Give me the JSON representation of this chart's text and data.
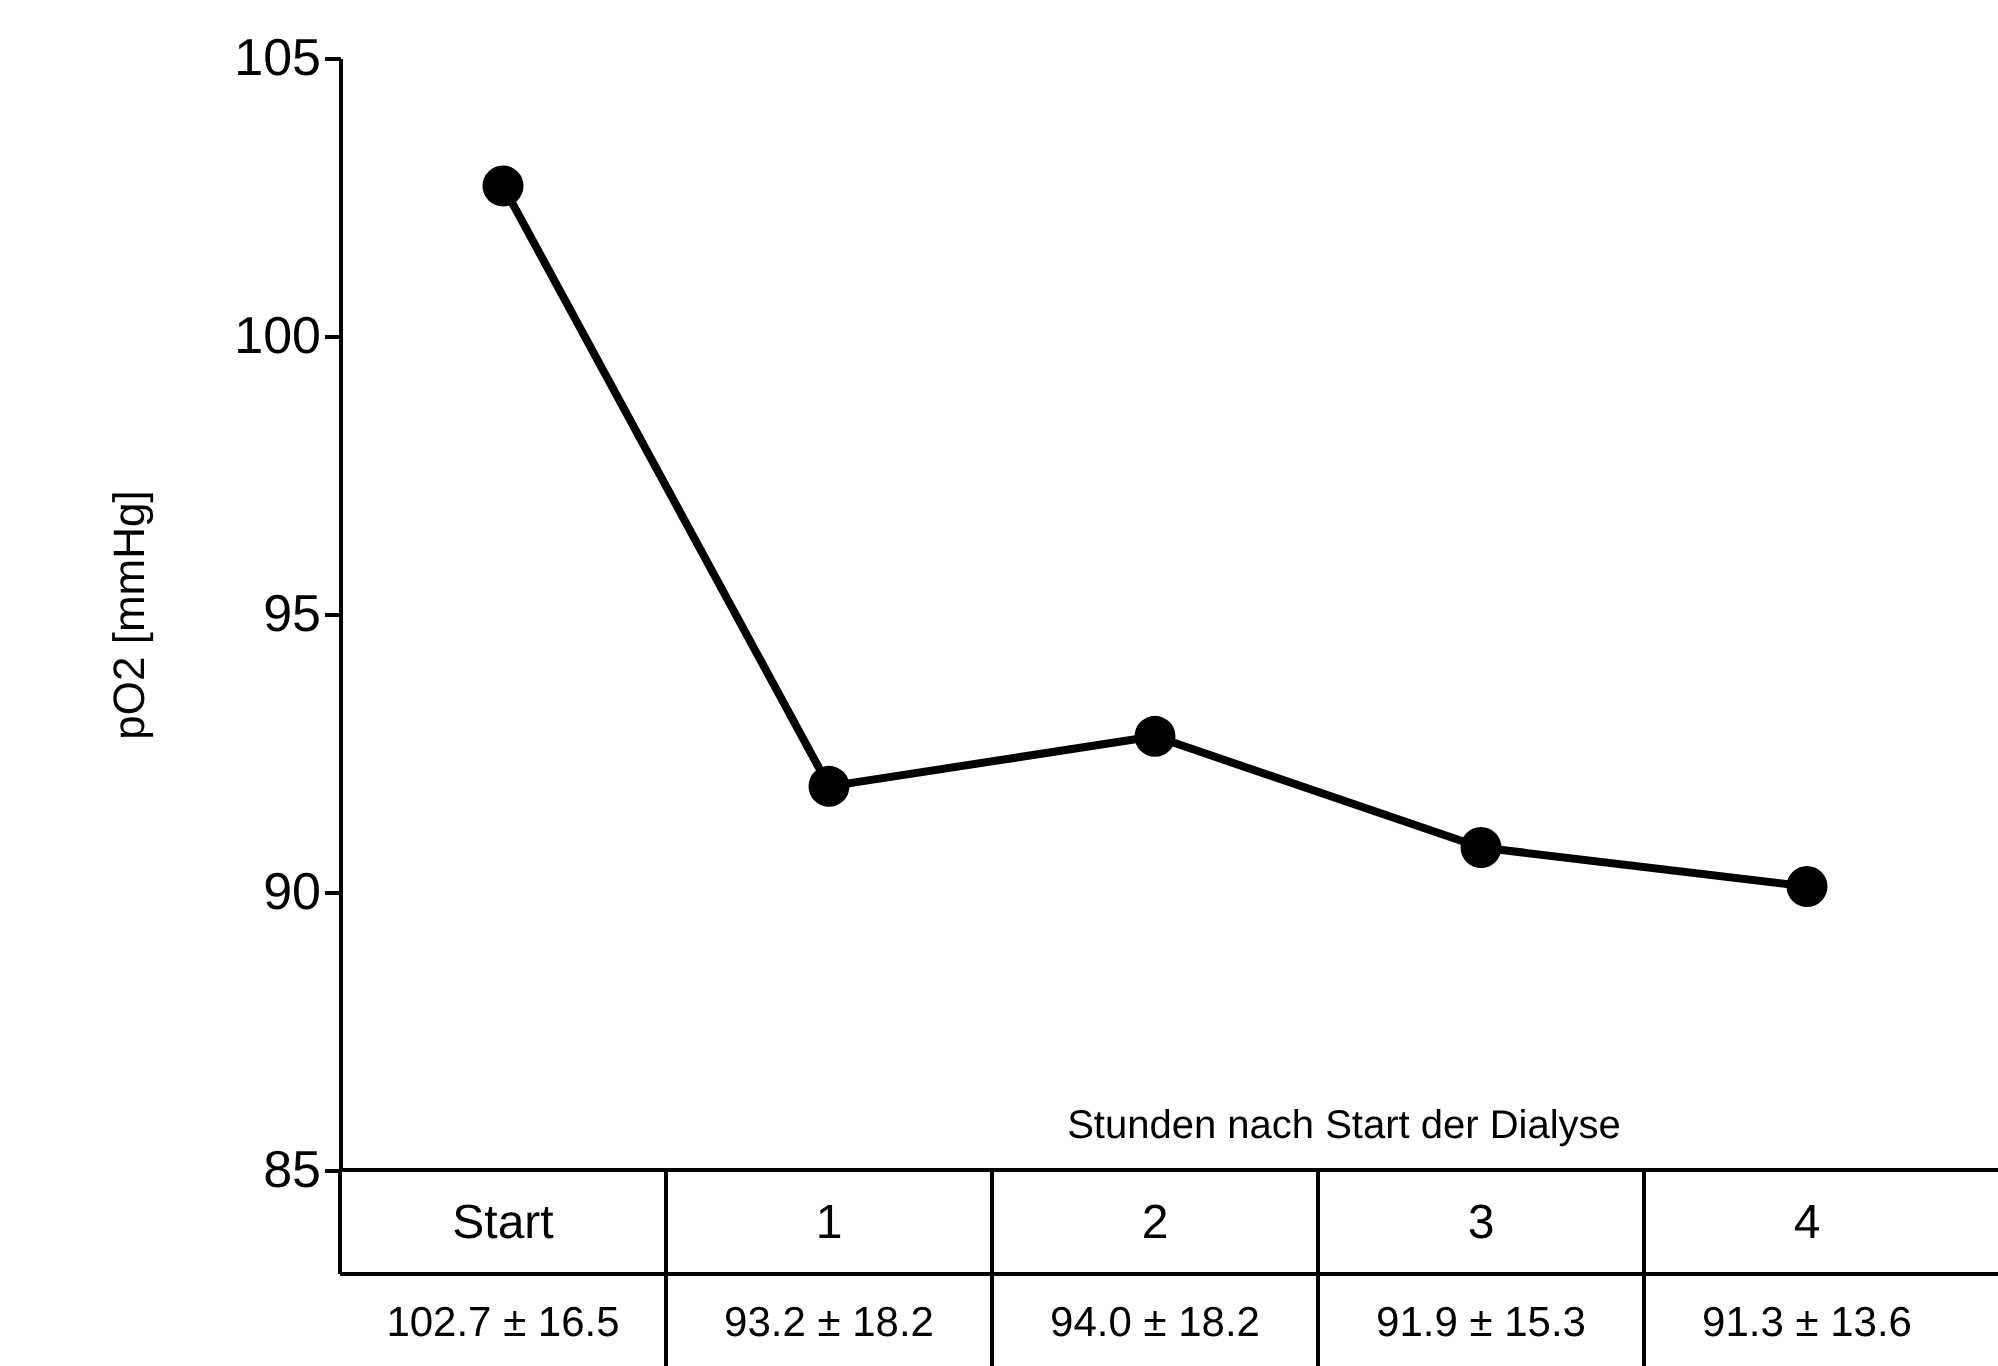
{
  "chart_data": {
    "type": "line",
    "xlabel": "Stunden nach Start der Dialyse",
    "ylabel": "pO2 [mmHg]",
    "categories": [
      "Start",
      "1",
      "2",
      "3",
      "4"
    ],
    "series": [
      {
        "color": "#000000",
        "values": [
          102.7,
          91.9,
          92.8,
          90.8,
          90.1
        ]
      }
    ],
    "annotations": [
      "102.7 ± 16.5",
      "93.2 ± 18.2",
      "94.0 ± 18.2",
      "91.9 ± 15.3",
      "91.3  ± 13.6"
    ],
    "ylim": [
      85,
      105
    ],
    "yticks": [
      85,
      90,
      95,
      100,
      105
    ],
    "grid": false,
    "marker": "circle",
    "line_style": "solid"
  }
}
